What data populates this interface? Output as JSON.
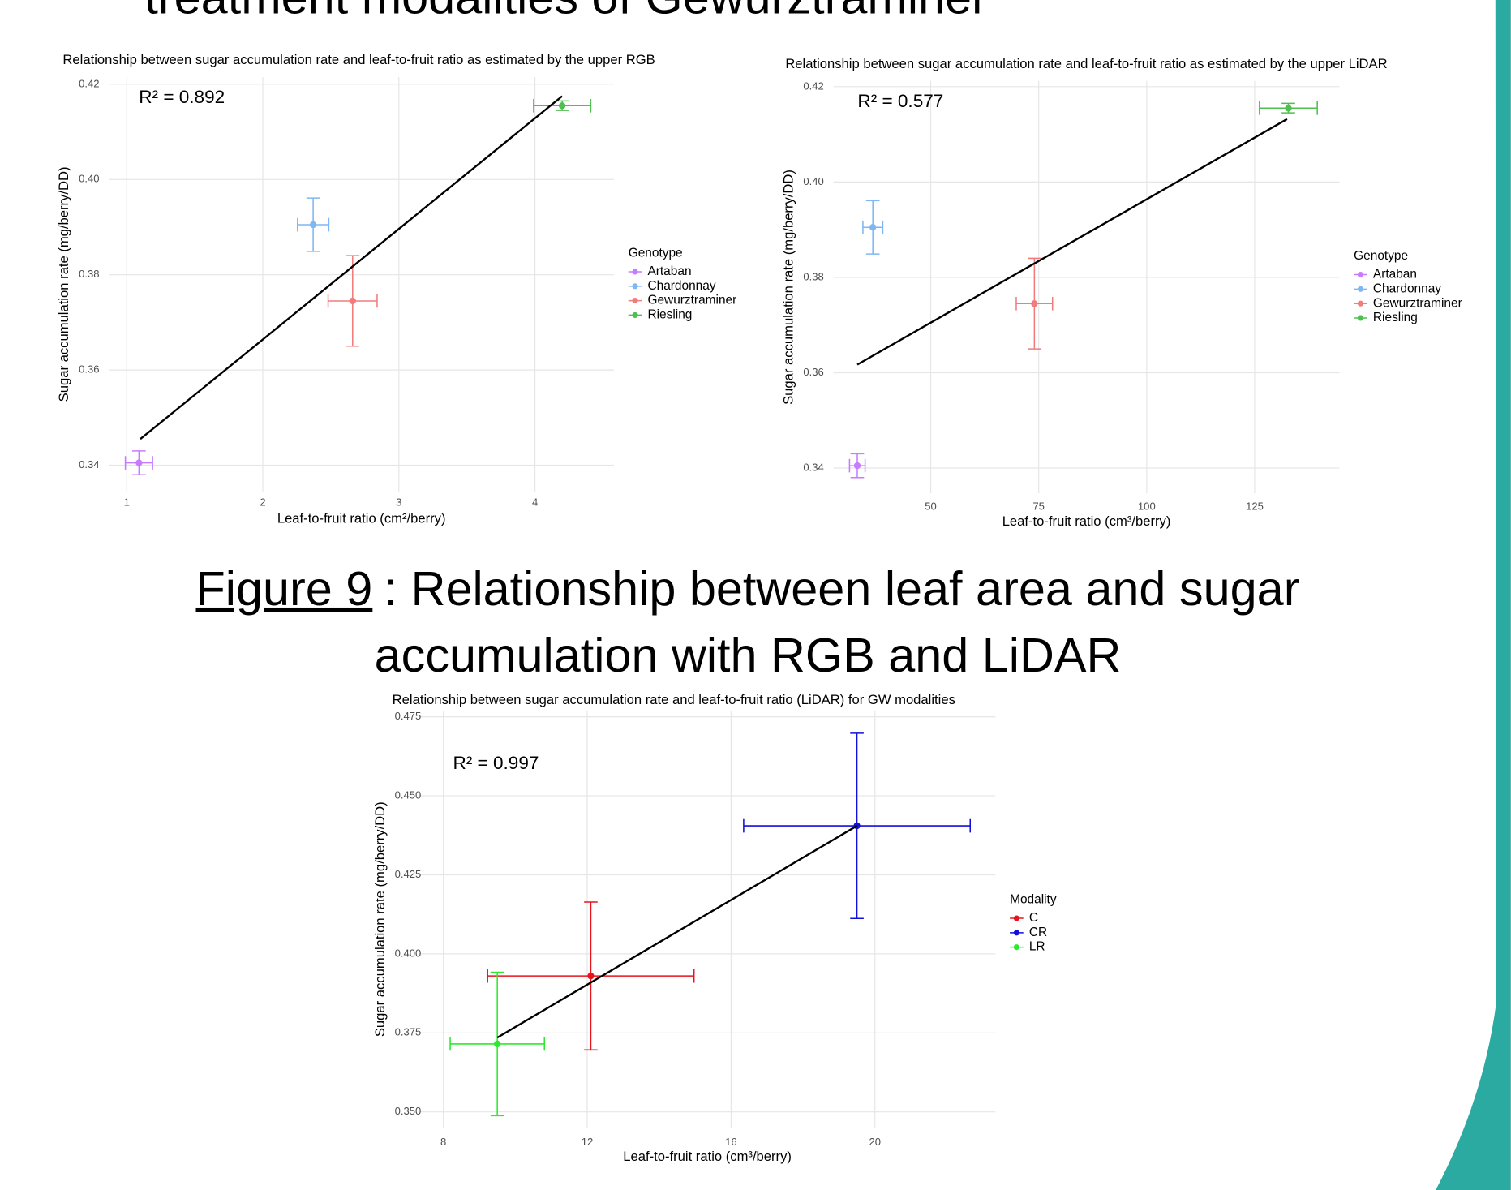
{
  "slide": {
    "heading": "treatment modalities of Gewurztraminer"
  },
  "caption": {
    "label": "Figure 9",
    "lines": [
      ": Relationship between leaf area and sugar",
      "accumulation with RGB and LiDAR"
    ]
  },
  "chart_data": [
    {
      "type": "scatter",
      "title": "Relationship between sugar accumulation rate and leaf-to-fruit ratio as estimated by the upper RGB",
      "x_label": "Leaf-to-fruit ratio (cm²/berry)",
      "y_label": "Sugar accumulation rate (mg/berry/DD)",
      "annotation": "R² = 0.892",
      "legend_title": "Genotype",
      "legend": "right",
      "grid": true,
      "xlim": [
        0.87,
        4.58
      ],
      "ylim": [
        0.3345,
        0.4215
      ],
      "xticks": [
        1,
        2,
        3,
        4
      ],
      "yticks": [
        0.34,
        0.36,
        0.38,
        {
          "value": 0.4,
          "label": "0.40"
        },
        0.42
      ],
      "series": [
        {
          "name": "Artaban",
          "color": "#c77cff",
          "x": [
            1.09
          ],
          "values": [
            0.3405
          ],
          "xerr": [
            0.1
          ],
          "yerr": [
            0.0025
          ]
        },
        {
          "name": "Chardonnay",
          "color": "#7fb6f5",
          "x": [
            2.37
          ],
          "values": [
            0.3905
          ],
          "xerr": [
            0.115
          ],
          "yerr": [
            0.0056
          ]
        },
        {
          "name": "Gewurztraminer",
          "color": "#f27b7b",
          "x": [
            2.66
          ],
          "values": [
            0.3745
          ],
          "xerr": [
            0.18
          ],
          "yerr": [
            0.0095
          ]
        },
        {
          "name": "Riesling",
          "color": "#4fbf4f",
          "x": [
            4.2
          ],
          "values": [
            0.4155
          ],
          "xerr": [
            0.21
          ],
          "yerr": [
            0.001
          ]
        }
      ],
      "regression": {
        "x": [
          1.1,
          4.2
        ],
        "y": [
          0.3455,
          0.4175
        ]
      }
    },
    {
      "type": "scatter",
      "title": "Relationship between sugar accumulation rate and leaf-to-fruit ratio as estimated by the upper LiDAR",
      "x_label": "Leaf-to-fruit ratio (cm³/berry)",
      "y_label": "Sugar accumulation rate (mg/berry/DD)",
      "annotation": "R² = 0.577",
      "legend_title": "Genotype",
      "legend": "right",
      "grid": true,
      "xlim": [
        27.5,
        144.6
      ],
      "ylim": [
        0.3347,
        0.4212
      ],
      "xticks": [
        50,
        75,
        100,
        125
      ],
      "yticks": [
        0.34,
        0.36,
        0.38,
        {
          "value": 0.4,
          "label": "0.40"
        },
        0.42
      ],
      "series": [
        {
          "name": "Artaban",
          "color": "#c77cff",
          "x": [
            33
          ],
          "values": [
            0.3405
          ],
          "xerr": [
            1.8
          ],
          "yerr": [
            0.0025
          ]
        },
        {
          "name": "Chardonnay",
          "color": "#7fb6f5",
          "x": [
            36.6
          ],
          "values": [
            0.3905
          ],
          "xerr": [
            2.3
          ],
          "yerr": [
            0.0056
          ]
        },
        {
          "name": "Gewurztraminer",
          "color": "#f27b7b",
          "x": [
            74
          ],
          "values": [
            0.3745
          ],
          "xerr": [
            4.2
          ],
          "yerr": [
            0.0095
          ]
        },
        {
          "name": "Riesling",
          "color": "#4fbf4f",
          "x": [
            132.8
          ],
          "values": [
            0.4155
          ],
          "xerr": [
            6.7
          ],
          "yerr": [
            0.001
          ]
        }
      ],
      "regression": {
        "x": [
          33,
          132.5
        ],
        "y": [
          0.3617,
          0.4132
        ]
      }
    },
    {
      "type": "scatter",
      "title": "Relationship between sugar accumulation rate and leaf-to-fruit ratio (LiDAR) for GW modalities",
      "x_label": "Leaf-to-fruit ratio (cm³/berry)",
      "y_label": "Sugar accumulation rate (mg/berry/DD)",
      "annotation": "R² = 0.997",
      "legend_title": "Modality",
      "legend": "right",
      "grid": true,
      "xlim": [
        7.33,
        23.35
      ],
      "ylim": [
        0.3451,
        0.4768
      ],
      "xticks": [
        8,
        12,
        16,
        20
      ],
      "yticks": [
        {
          "value": 0.35,
          "label": "0.350"
        },
        0.375,
        {
          "value": 0.4,
          "label": "0.400"
        },
        0.425,
        {
          "value": 0.45,
          "label": "0.450"
        },
        0.475
      ],
      "series": [
        {
          "name": "C",
          "color": "#e8141b",
          "x": [
            12.1
          ],
          "values": [
            0.393
          ],
          "xerr": [
            2.87
          ],
          "yerr": [
            0.0234
          ]
        },
        {
          "name": "CR",
          "color": "#1010d8",
          "x": [
            19.5
          ],
          "values": [
            0.4405
          ],
          "xerr": [
            3.15
          ],
          "yerr": [
            0.0293
          ]
        },
        {
          "name": "LR",
          "color": "#2ee82e",
          "x": [
            9.5
          ],
          "values": [
            0.3715
          ],
          "xerr": [
            1.31
          ],
          "yerr": [
            0.0227
          ]
        }
      ],
      "regression": {
        "x": [
          9.5,
          19.5
        ],
        "y": [
          0.3735,
          0.4405
        ]
      }
    }
  ]
}
